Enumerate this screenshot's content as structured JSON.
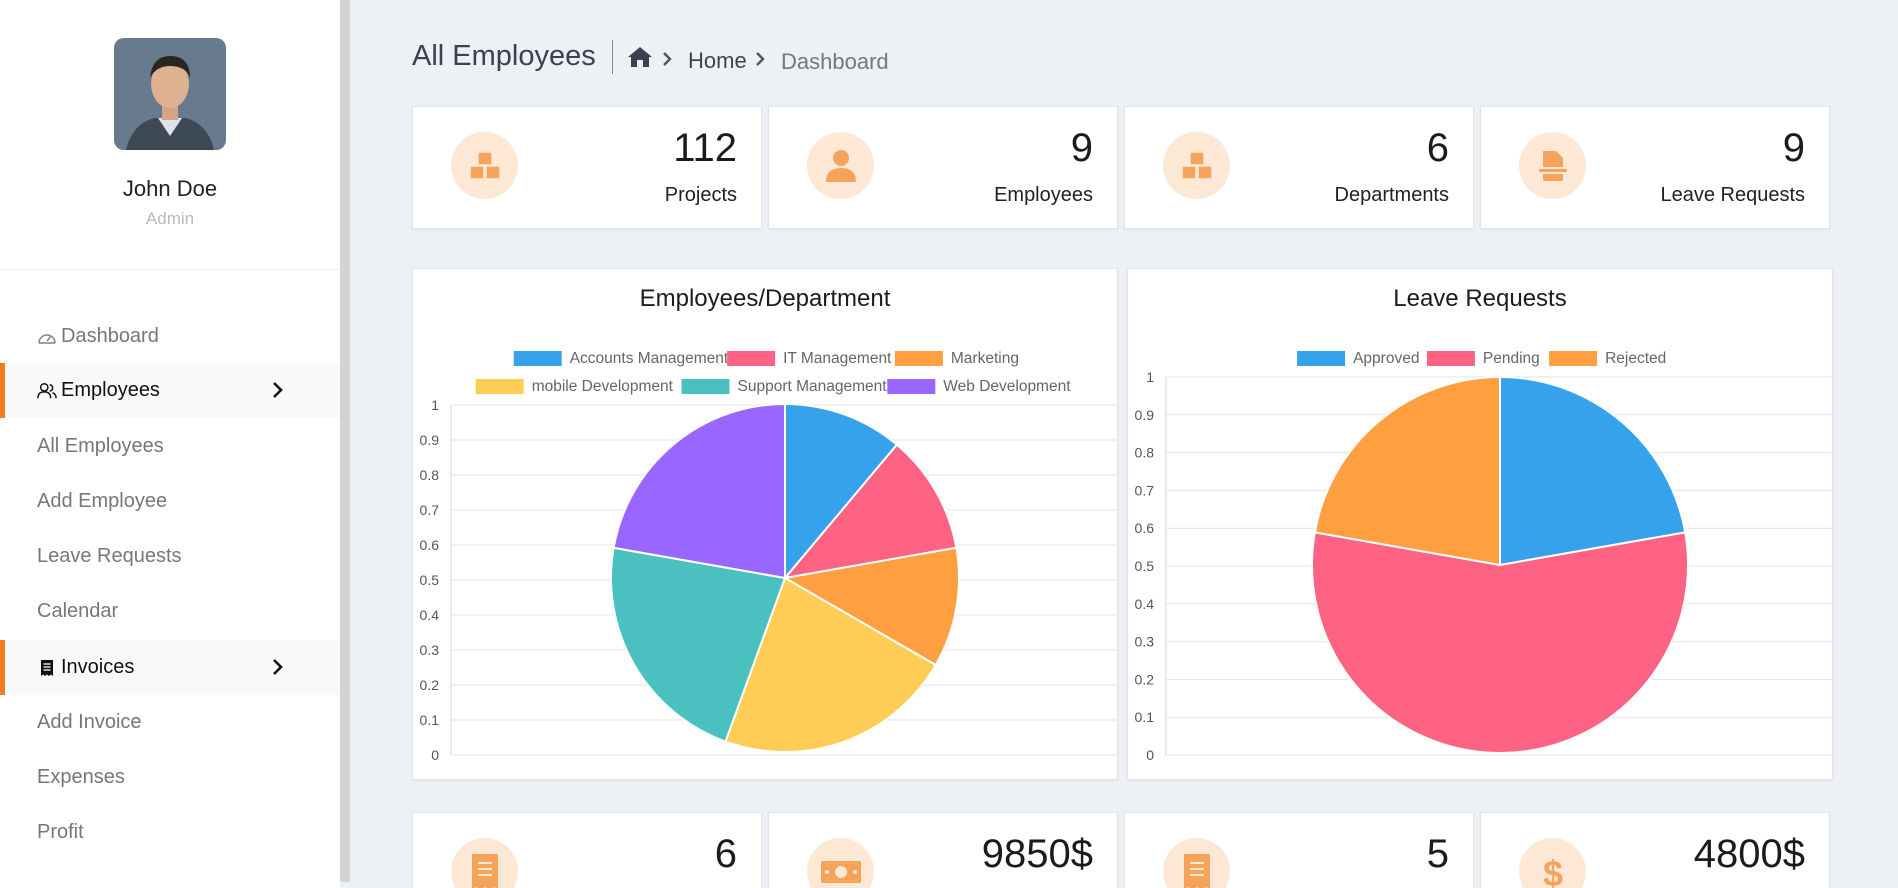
{
  "sidebar": {
    "profile": {
      "name": "John Doe",
      "role": "Admin"
    },
    "items": [
      {
        "label": "Dashboard",
        "icon": "gauge-icon"
      },
      {
        "label": "Employees",
        "icon": "users-icon"
      },
      {
        "label": "All Employees"
      },
      {
        "label": "Add Employee"
      },
      {
        "label": "Leave Requests"
      },
      {
        "label": "Calendar"
      },
      {
        "label": "Invoices",
        "icon": "receipt-icon"
      },
      {
        "label": "Add Invoice"
      },
      {
        "label": "Expenses"
      },
      {
        "label": "Profit"
      }
    ]
  },
  "header": {
    "title": "All Employees",
    "breadcrumb": [
      "Home",
      "Dashboard"
    ]
  },
  "stats": [
    {
      "value": "112",
      "label": "Projects",
      "icon": "cubes-icon"
    },
    {
      "value": "9",
      "label": "Employees",
      "icon": "user-icon"
    },
    {
      "value": "6",
      "label": "Departments",
      "icon": "cubes-icon"
    },
    {
      "value": "9",
      "label": "Leave Requests",
      "icon": "file-icon"
    }
  ],
  "bottom_stats": [
    {
      "value": "6",
      "icon": "receipt-icon"
    },
    {
      "value": "9850$",
      "icon": "money-bill-icon"
    },
    {
      "value": "5",
      "icon": "receipt-icon"
    },
    {
      "value": "4800$",
      "icon": "dollar-icon"
    }
  ],
  "colors": {
    "accent": "#f47c20",
    "icon_bg": "#fde8d6"
  },
  "chart_data": [
    {
      "type": "pie",
      "title": "Employees/Department",
      "categories": [
        "Accounts Management",
        "IT Management",
        "Marketing",
        "mobile Development",
        "Support Management",
        "Web Development"
      ],
      "values": [
        1,
        1,
        1,
        2,
        2,
        2
      ],
      "colors": [
        "#36a2eb",
        "#ff6384",
        "#ff9f40",
        "#ffcd56",
        "#4bc0c0",
        "#9966ff"
      ],
      "yticks": [
        "0",
        "0.1",
        "0.2",
        "0.3",
        "0.4",
        "0.5",
        "0.6",
        "0.7",
        "0.8",
        "0.9",
        "1"
      ],
      "legend": "top",
      "grid": true
    },
    {
      "type": "pie",
      "title": "Leave Requests",
      "categories": [
        "Approved",
        "Pending",
        "Rejected"
      ],
      "values": [
        2,
        5,
        2
      ],
      "colors": [
        "#36a2eb",
        "#ff6384",
        "#ff9f40"
      ],
      "yticks": [
        "0",
        "0.1",
        "0.2",
        "0.3",
        "0.4",
        "0.5",
        "0.6",
        "0.7",
        "0.8",
        "0.9",
        "1"
      ],
      "legend": "top",
      "grid": true
    }
  ]
}
